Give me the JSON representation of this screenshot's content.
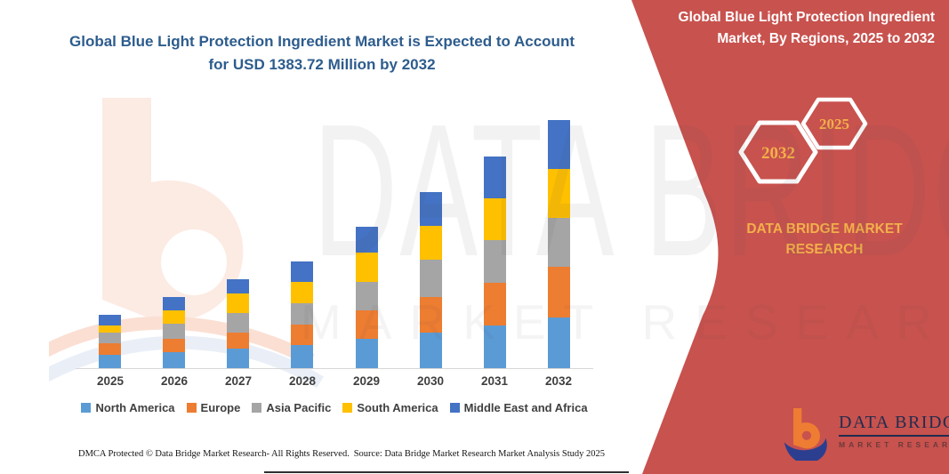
{
  "main": {
    "title": "Global Blue Light Protection Ingredient Market is Expected to Account for USD 1383.72 Million by 2032",
    "footer_left": "DMCA Protected © Data Bridge Market Research-  All Rights Reserved.",
    "footer_right": "Source: Data Bridge Market Research  Market Analysis Study 2025"
  },
  "watermark": {
    "line1": "DATA BRIDGE",
    "line2": "MARKET RESEARCH"
  },
  "side_panel": {
    "title": "Global Blue Light Protection Ingredient Market, By Regions, 2025 to 2032",
    "hexagon_back_year": "2032",
    "hexagon_front_year": "2025",
    "brand_line1": "DATA BRIDGE MARKET",
    "brand_line2": "RESEARCH",
    "colors": {
      "panel": "#c8524e",
      "gold": "#f2b04a"
    }
  },
  "logo": {
    "wordmark": "DATA BRIDGE",
    "subtitle": "MARKET RESEARCH"
  },
  "chart_data": {
    "type": "bar",
    "stacked": true,
    "title": "Global Blue Light Protection Ingredient Market is Expected to Account for USD 1383.72 Million by 2032",
    "unit": "USD Million",
    "categories": [
      "2025",
      "2026",
      "2027",
      "2028",
      "2029",
      "2030",
      "2031",
      "2032"
    ],
    "series": [
      {
        "name": "North America",
        "color": "#5B9BD5",
        "values": [
          74,
          90,
          109,
          129,
          164,
          198,
          238,
          283
        ]
      },
      {
        "name": "Europe",
        "color": "#ED7D31",
        "values": [
          66,
          74,
          89,
          114,
          159,
          198,
          238,
          283
        ]
      },
      {
        "name": "Asia Pacific",
        "color": "#A5A5A5",
        "values": [
          58,
          84,
          109,
          119,
          159,
          208,
          238,
          273
        ]
      },
      {
        "name": "South America",
        "color": "#FFC000",
        "values": [
          42,
          74,
          109,
          119,
          164,
          188,
          233,
          273
        ]
      },
      {
        "name": "Middle East and Africa",
        "color": "#4472C4",
        "values": [
          58,
          74,
          84,
          114,
          144,
          193,
          238,
          271.72
        ]
      }
    ],
    "totals": [
      298,
      396,
      500,
      595,
      790,
      985,
      1185,
      1383.72
    ],
    "ylim": [
      0,
      1400
    ],
    "grid": false,
    "legend_position": "bottom",
    "xlabel": "",
    "ylabel": ""
  }
}
